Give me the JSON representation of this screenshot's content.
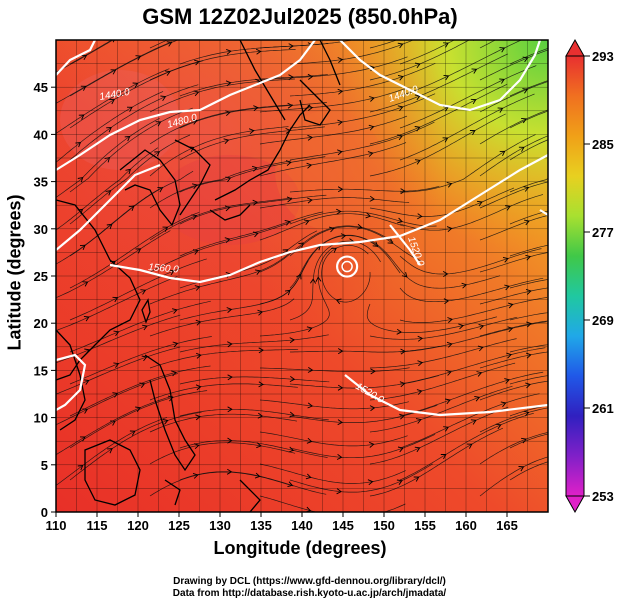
{
  "title": "GSM 12Z02Jul2025 (850.0hPa)",
  "x_axis": {
    "label": "Longitude (degrees)",
    "ticks": [
      "110",
      "115",
      "120",
      "125",
      "130",
      "135",
      "140",
      "145",
      "150",
      "155",
      "160",
      "165"
    ]
  },
  "y_axis": {
    "label": "Latitude (degrees)",
    "ticks": [
      "0",
      "5",
      "10",
      "15",
      "20",
      "25",
      "30",
      "35",
      "40",
      "45"
    ]
  },
  "colorbar": {
    "labels": [
      "293",
      "285",
      "277",
      "269",
      "261",
      "253"
    ],
    "colors": [
      "#e83030",
      "#f07020",
      "#f0a018",
      "#e8d020",
      "#a8e030",
      "#40c848",
      "#20c8a0",
      "#20a8e8",
      "#2058e8",
      "#3020c0",
      "#8020c8",
      "#e020c8"
    ]
  },
  "contour_labels": [
    "1440.0",
    "1480.0",
    "1440.0",
    "1560.0",
    "1520.0",
    "1520.0"
  ],
  "credits": {
    "line1": "Drawing by DCL (https://www.gfd-dennou.org/library/dcl/)",
    "line2": "Data from http://database.rish.kyoto-u.ac.jp/arch/jmadata/"
  },
  "chart_data": {
    "type": "heatmap",
    "title": "GSM 12Z02Jul2025 (850.0hPa)",
    "xlabel": "Longitude (degrees)",
    "ylabel": "Latitude (degrees)",
    "xlim": [
      110,
      170
    ],
    "ylim": [
      0,
      50
    ],
    "color_range": [
      253,
      293
    ],
    "colorbar_ticks": [
      253,
      261,
      269,
      277,
      285,
      293
    ]
  }
}
